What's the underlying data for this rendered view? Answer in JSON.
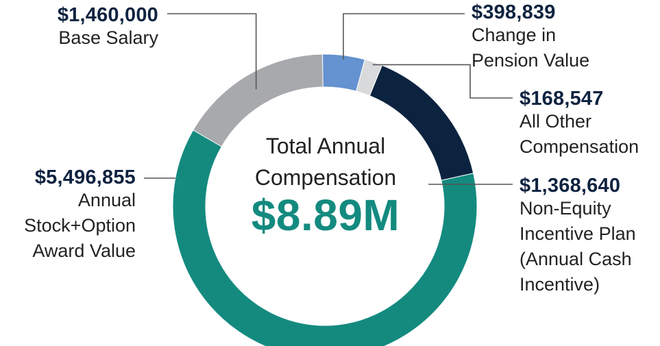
{
  "chart_data": {
    "type": "pie",
    "style": "donut",
    "center_title": "Total Annual Compensation",
    "center_value": "$8.89M",
    "slices": [
      {
        "key": "base",
        "value": 1460000,
        "value_label": "$1,460,000",
        "label": "Base Salary",
        "color": "#a7a9ac"
      },
      {
        "key": "pension",
        "value": 398839,
        "value_label": "$398,839",
        "label": "Change in Pension Value",
        "color": "#6592d0"
      },
      {
        "key": "other",
        "value": 168547,
        "value_label": "$168,547",
        "label": "All Other Compensation",
        "color": "#d9dadc"
      },
      {
        "key": "nonequity",
        "value": 1368640,
        "value_label": "$1,368,640",
        "label": "Non-Equity Incentive Plan (Annual Cash Incentive)",
        "color": "#0c2340"
      },
      {
        "key": "stock",
        "value": 5496855,
        "value_label": "$5,496,855",
        "label": "Annual Stock+Option Award Value",
        "color": "#148a7f"
      }
    ]
  },
  "leader_color": "#555555"
}
